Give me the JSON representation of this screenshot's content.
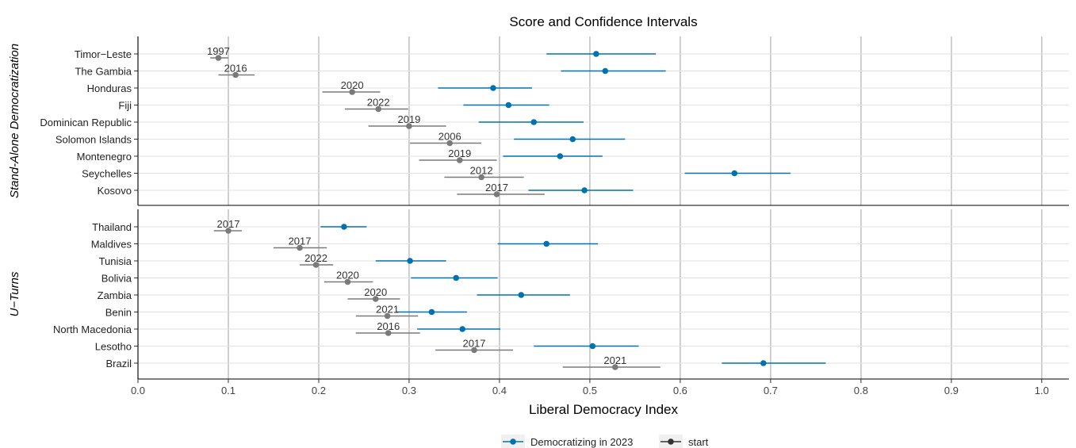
{
  "chart_data": {
    "type": "scatter",
    "title": "Score and Confidence Intervals",
    "xlabel": "Liberal Democracy Index",
    "xlim": [
      0,
      1.03
    ],
    "x_ticks": [
      "0.0",
      "0.1",
      "0.2",
      "0.3",
      "0.4",
      "0.5",
      "0.6",
      "0.7",
      "0.8",
      "0.9",
      "1.0"
    ],
    "x_tick_values": [
      0.0,
      0.1,
      0.2,
      0.3,
      0.4,
      0.5,
      0.6,
      0.7,
      0.8,
      0.9,
      1.0
    ],
    "grid": true,
    "legend": {
      "position": "bottom",
      "entries": [
        {
          "name": "Democratizing in 2023",
          "color": "#0072B2"
        },
        {
          "name": "start",
          "color": "#333333"
        }
      ]
    },
    "series_colors": {
      "current": "#0072B2",
      "start": "#7a7a7a"
    },
    "panels": [
      {
        "label": "Stand-Alone Democratization",
        "rows": [
          {
            "country": "Timor−Leste",
            "current": {
              "value": 0.507,
              "lo": 0.452,
              "hi": 0.573
            },
            "start": {
              "value": 0.089,
              "lo": 0.08,
              "hi": 0.1,
              "year": "1997"
            }
          },
          {
            "country": "The Gambia",
            "current": {
              "value": 0.517,
              "lo": 0.468,
              "hi": 0.584
            },
            "start": {
              "value": 0.108,
              "lo": 0.089,
              "hi": 0.129,
              "year": "2016"
            }
          },
          {
            "country": "Honduras",
            "current": {
              "value": 0.393,
              "lo": 0.332,
              "hi": 0.436
            },
            "start": {
              "value": 0.237,
              "lo": 0.204,
              "hi": 0.268,
              "year": "2020"
            }
          },
          {
            "country": "Fiji",
            "current": {
              "value": 0.41,
              "lo": 0.36,
              "hi": 0.455
            },
            "start": {
              "value": 0.266,
              "lo": 0.229,
              "hi": 0.299,
              "year": "2022"
            }
          },
          {
            "country": "Dominican Republic",
            "current": {
              "value": 0.438,
              "lo": 0.377,
              "hi": 0.493
            },
            "start": {
              "value": 0.3,
              "lo": 0.255,
              "hi": 0.341,
              "year": "2019"
            }
          },
          {
            "country": "Solomon Islands",
            "current": {
              "value": 0.481,
              "lo": 0.416,
              "hi": 0.539
            },
            "start": {
              "value": 0.345,
              "lo": 0.301,
              "hi": 0.38,
              "year": "2006"
            }
          },
          {
            "country": "Montenegro",
            "current": {
              "value": 0.467,
              "lo": 0.404,
              "hi": 0.514
            },
            "start": {
              "value": 0.356,
              "lo": 0.311,
              "hi": 0.397,
              "year": "2019"
            }
          },
          {
            "country": "Seychelles",
            "current": {
              "value": 0.66,
              "lo": 0.605,
              "hi": 0.722
            },
            "start": {
              "value": 0.38,
              "lo": 0.339,
              "hi": 0.427,
              "year": "2012"
            }
          },
          {
            "country": "Kosovo",
            "current": {
              "value": 0.494,
              "lo": 0.432,
              "hi": 0.548
            },
            "start": {
              "value": 0.397,
              "lo": 0.353,
              "hi": 0.45,
              "year": "2017"
            }
          }
        ]
      },
      {
        "label": "U−Turns",
        "rows": [
          {
            "country": "Thailand",
            "current": {
              "value": 0.228,
              "lo": 0.202,
              "hi": 0.253
            },
            "start": {
              "value": 0.1,
              "lo": 0.084,
              "hi": 0.115,
              "year": "2017"
            }
          },
          {
            "country": "Maldives",
            "current": {
              "value": 0.452,
              "lo": 0.398,
              "hi": 0.509
            },
            "start": {
              "value": 0.179,
              "lo": 0.15,
              "hi": 0.209,
              "year": "2017"
            }
          },
          {
            "country": "Tunisia",
            "current": {
              "value": 0.301,
              "lo": 0.263,
              "hi": 0.341
            },
            "start": {
              "value": 0.197,
              "lo": 0.179,
              "hi": 0.216,
              "year": "2022"
            }
          },
          {
            "country": "Bolivia",
            "current": {
              "value": 0.352,
              "lo": 0.302,
              "hi": 0.398
            },
            "start": {
              "value": 0.232,
              "lo": 0.206,
              "hi": 0.26,
              "year": "2020"
            }
          },
          {
            "country": "Zambia",
            "current": {
              "value": 0.424,
              "lo": 0.375,
              "hi": 0.478
            },
            "start": {
              "value": 0.263,
              "lo": 0.232,
              "hi": 0.29,
              "year": "2020"
            }
          },
          {
            "country": "Benin",
            "current": {
              "value": 0.325,
              "lo": 0.286,
              "hi": 0.364
            },
            "start": {
              "value": 0.276,
              "lo": 0.241,
              "hi": 0.31,
              "year": "2021"
            }
          },
          {
            "country": "North Macedonia",
            "current": {
              "value": 0.359,
              "lo": 0.309,
              "hi": 0.401
            },
            "start": {
              "value": 0.277,
              "lo": 0.241,
              "hi": 0.312,
              "year": "2016"
            }
          },
          {
            "country": "Lesotho",
            "current": {
              "value": 0.503,
              "lo": 0.438,
              "hi": 0.554
            },
            "start": {
              "value": 0.372,
              "lo": 0.329,
              "hi": 0.415,
              "year": "2017"
            }
          },
          {
            "country": "Brazil",
            "current": {
              "value": 0.692,
              "lo": 0.646,
              "hi": 0.761
            },
            "start": {
              "value": 0.528,
              "lo": 0.47,
              "hi": 0.578,
              "year": "2021"
            }
          }
        ]
      }
    ]
  }
}
